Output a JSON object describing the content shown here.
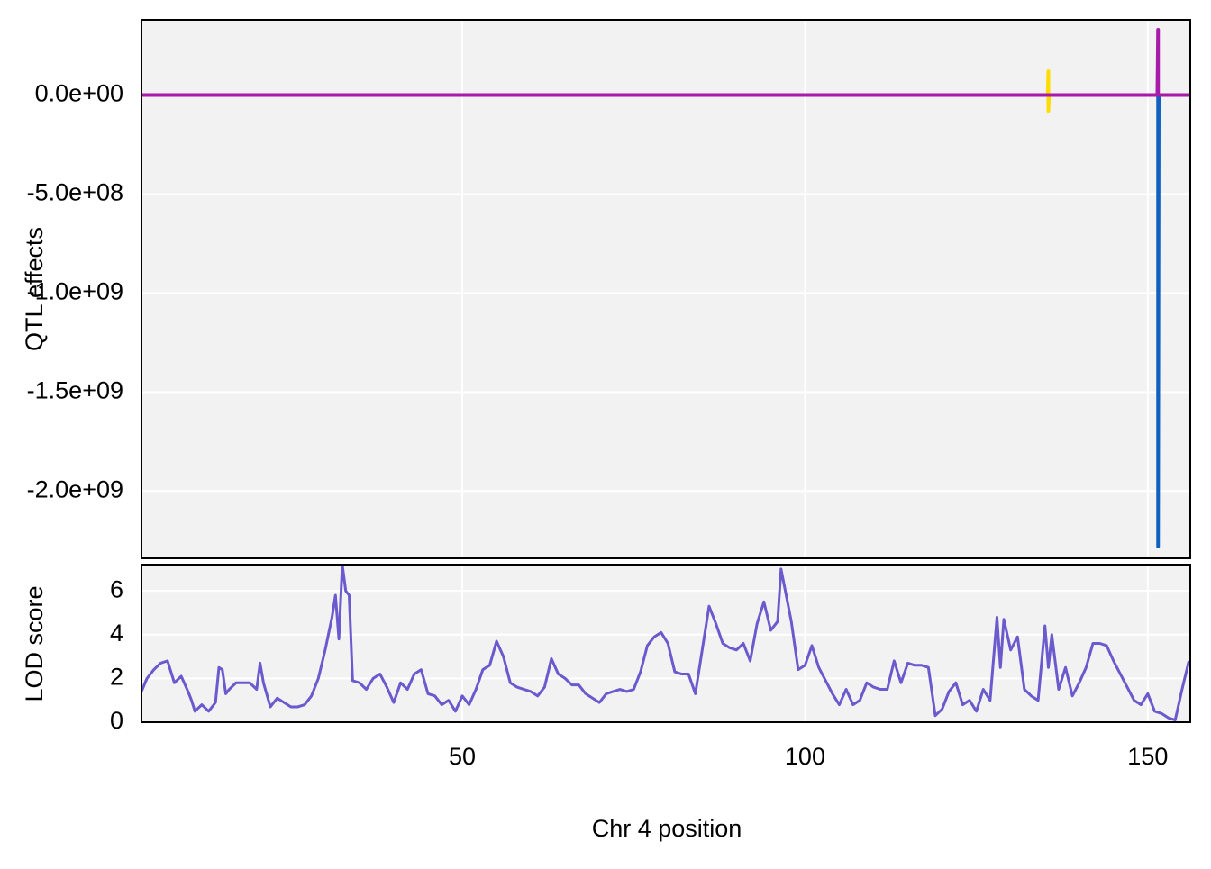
{
  "chart_data": [
    {
      "type": "line",
      "ylabel": "QTL effects",
      "x": [
        3.2,
        135.4,
        135.5,
        135.5,
        135.6,
        151.4,
        151.5,
        151.5,
        151.6,
        156.2
      ],
      "series": [
        {
          "color": "#ffdc00",
          "values": [
            0,
            0,
            120000000,
            -80000000,
            0,
            0,
            0,
            0,
            0,
            0
          ]
        },
        {
          "color": "#1060c0",
          "values": [
            0,
            0,
            0,
            0,
            0,
            0,
            0,
            -2280000000,
            0,
            0
          ]
        },
        {
          "color": "#a81aa8",
          "values": [
            0,
            0,
            0,
            0,
            0,
            0,
            330000000,
            0,
            0,
            0
          ]
        }
      ],
      "xlim": [
        3.2,
        156.2
      ],
      "xticks": [
        50,
        100,
        150
      ],
      "ylim": [
        -2340000000,
        380000000
      ],
      "yticks": [
        {
          "value": 0,
          "label": "0.0e+00"
        },
        {
          "value": -500000000,
          "label": "-5.0e+08"
        },
        {
          "value": -1000000000,
          "label": "-1.0e+09"
        },
        {
          "value": -1500000000,
          "label": "-1.5e+09"
        },
        {
          "value": -2000000000,
          "label": "-2.0e+09"
        }
      ],
      "grid": true
    },
    {
      "type": "line",
      "ylabel": "LOD score",
      "xlabel": "Chr 4 position",
      "x": [
        3.2,
        4,
        5,
        6,
        7,
        8,
        9,
        10,
        10.5,
        11,
        12,
        13,
        14,
        14.5,
        15,
        15.5,
        16,
        17,
        18,
        19,
        20,
        20.5,
        21,
        22,
        23,
        24,
        25,
        26,
        27,
        28,
        29,
        30,
        31,
        31.5,
        32,
        32.5,
        33,
        33.5,
        34,
        35,
        36,
        37,
        38,
        39,
        40,
        41,
        42,
        43,
        44,
        45,
        46,
        47,
        48,
        49,
        50,
        51,
        52,
        53,
        54,
        55,
        56,
        57,
        58,
        59,
        60,
        61,
        62,
        63,
        64,
        65,
        66,
        67,
        68,
        69,
        70,
        71,
        72,
        73,
        74,
        75,
        76,
        77,
        78,
        79,
        80,
        81,
        82,
        83,
        84,
        85,
        86,
        87,
        88,
        89,
        90,
        91,
        92,
        93,
        94,
        95,
        96,
        96.5,
        97,
        98,
        99,
        100,
        101,
        102,
        103,
        104,
        105,
        106,
        107,
        108,
        109,
        110,
        111,
        112,
        113,
        114,
        115,
        116,
        117,
        118,
        119,
        120,
        121,
        122,
        123,
        124,
        125,
        126,
        127,
        128,
        128.5,
        129,
        130,
        131,
        132,
        133,
        134,
        135,
        135.5,
        136,
        137,
        138,
        139,
        140,
        141,
        142,
        143,
        144,
        145,
        146,
        147,
        148,
        149,
        150,
        151,
        152,
        153,
        154,
        155,
        156
      ],
      "series": [
        {
          "color": "#6a5acd",
          "values": [
            1.4,
            2.0,
            2.4,
            2.7,
            2.8,
            1.8,
            2.1,
            1.4,
            1.0,
            0.5,
            0.8,
            0.5,
            0.9,
            2.5,
            2.4,
            1.3,
            1.5,
            1.8,
            1.8,
            1.8,
            1.5,
            2.7,
            1.8,
            0.7,
            1.1,
            0.9,
            0.7,
            0.7,
            0.8,
            1.2,
            2.0,
            3.3,
            4.8,
            5.8,
            3.8,
            7.2,
            6.0,
            5.8,
            1.9,
            1.8,
            1.5,
            2.0,
            2.2,
            1.6,
            0.9,
            1.8,
            1.5,
            2.2,
            2.4,
            1.3,
            1.2,
            0.8,
            1.0,
            0.5,
            1.2,
            0.8,
            1.5,
            2.4,
            2.6,
            3.7,
            3.0,
            1.8,
            1.6,
            1.5,
            1.4,
            1.2,
            1.6,
            2.9,
            2.2,
            2.0,
            1.7,
            1.7,
            1.3,
            1.1,
            0.9,
            1.3,
            1.4,
            1.5,
            1.4,
            1.5,
            2.3,
            3.5,
            3.9,
            4.1,
            3.6,
            2.3,
            2.2,
            2.2,
            1.3,
            3.3,
            5.3,
            4.5,
            3.6,
            3.4,
            3.3,
            3.6,
            2.8,
            4.5,
            5.5,
            4.2,
            4.6,
            7.0,
            6.2,
            4.6,
            2.4,
            2.6,
            3.5,
            2.5,
            1.9,
            1.3,
            0.8,
            1.5,
            0.8,
            1.0,
            1.8,
            1.6,
            1.5,
            1.5,
            2.8,
            1.8,
            2.7,
            2.6,
            2.6,
            2.5,
            0.3,
            0.6,
            1.4,
            1.8,
            0.8,
            1.0,
            0.5,
            1.5,
            1.0,
            4.8,
            2.5,
            4.7,
            3.3,
            3.9,
            1.5,
            1.2,
            1.0,
            4.4,
            2.5,
            4.0,
            1.5,
            2.5,
            1.2,
            1.8,
            2.5,
            3.6,
            3.6,
            3.5,
            2.8,
            2.2,
            1.6,
            1.0,
            0.8,
            1.3,
            0.5,
            0.4,
            0.2,
            0.1,
            1.5,
            2.8
          ]
        }
      ],
      "xlim": [
        3.2,
        156.2
      ],
      "xticks": [
        50,
        100,
        150
      ],
      "ylim": [
        0,
        7.2
      ],
      "yticks": [
        0,
        2,
        4,
        6
      ],
      "grid": true
    }
  ]
}
